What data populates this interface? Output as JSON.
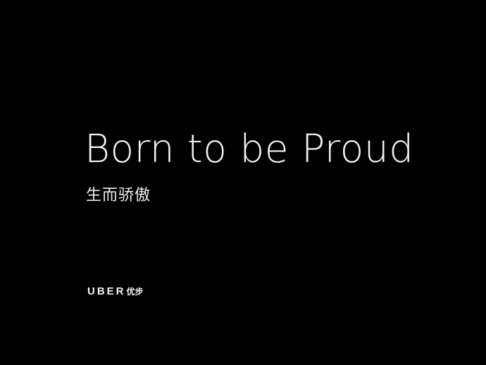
{
  "poster": {
    "headline": "Born to be Proud",
    "subline": "生而骄傲",
    "logo": {
      "wordmark": "UBER",
      "wordmark_cn": "优步"
    }
  },
  "colors": {
    "background": "#000000",
    "text": "#f2f2f2"
  }
}
